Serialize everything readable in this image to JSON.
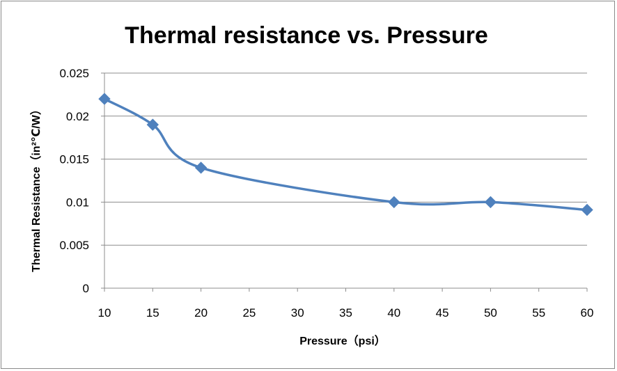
{
  "chart_data": {
    "type": "line",
    "title": "Thermal resistance vs. Pressure",
    "xlabel": "Pressure（psi）",
    "ylabel": "Thermal Resistance（in²℃/W）",
    "x_ticks": [
      "10",
      "15",
      "20",
      "25",
      "30",
      "35",
      "40",
      "45",
      "50",
      "55",
      "60"
    ],
    "y_ticks": [
      "0",
      "0.005",
      "0.01",
      "0.015",
      "0.02",
      "0.025"
    ],
    "xlim": [
      10,
      60
    ],
    "ylim": [
      0,
      0.025
    ],
    "grid": true,
    "series": [
      {
        "name": "Thermal resistance",
        "color": "#4F81BD",
        "marker": "diamond",
        "x": [
          10,
          15,
          20,
          40,
          50,
          60
        ],
        "y": [
          0.022,
          0.019,
          0.014,
          0.01,
          0.01,
          0.0091
        ]
      }
    ]
  }
}
